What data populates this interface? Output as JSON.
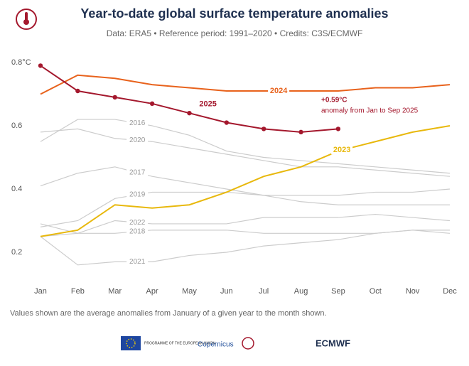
{
  "chart_data": {
    "type": "line",
    "title": "Year-to-date global surface temperature anomalies",
    "subtitle": "Data: ERA5 • Reference period: 1991–2020 • Credits: C3S/ECMWF",
    "categories": [
      "Jan",
      "Feb",
      "Mar",
      "Apr",
      "May",
      "Jun",
      "Jul",
      "Aug",
      "Sep",
      "Oct",
      "Nov",
      "Dec"
    ],
    "ylim": [
      0.12,
      0.83
    ],
    "yticks": [
      {
        "value": 0.8,
        "label": "0.8°C"
      },
      0.6,
      0.4,
      0.2
    ],
    "series": [
      {
        "name": "2016",
        "color": "#cccccc",
        "values": [
          0.55,
          0.62,
          0.62,
          0.6,
          0.57,
          0.52,
          0.5,
          0.49,
          0.48,
          0.47,
          0.46,
          0.45
        ]
      },
      {
        "name": "2020",
        "color": "#cccccc",
        "values": [
          0.58,
          0.59,
          0.56,
          0.55,
          0.53,
          0.51,
          0.49,
          0.47,
          0.47,
          0.46,
          0.45,
          0.44
        ]
      },
      {
        "name": "2017",
        "color": "#cccccc",
        "values": [
          0.41,
          0.45,
          0.47,
          0.44,
          0.42,
          0.4,
          0.38,
          0.36,
          0.35,
          0.35,
          0.35,
          0.35
        ]
      },
      {
        "name": "2019",
        "color": "#cccccc",
        "values": [
          0.28,
          0.3,
          0.37,
          0.39,
          0.39,
          0.39,
          0.38,
          0.38,
          0.38,
          0.39,
          0.39,
          0.4
        ]
      },
      {
        "name": "2022",
        "color": "#cccccc",
        "values": [
          0.29,
          0.26,
          0.3,
          0.29,
          0.29,
          0.29,
          0.31,
          0.31,
          0.31,
          0.32,
          0.31,
          0.3
        ]
      },
      {
        "name": "2018",
        "color": "#cccccc",
        "values": [
          0.25,
          0.26,
          0.26,
          0.27,
          0.27,
          0.27,
          0.26,
          0.26,
          0.26,
          0.26,
          0.27,
          0.27
        ]
      },
      {
        "name": "2021",
        "color": "#cccccc",
        "values": [
          0.25,
          0.16,
          0.17,
          0.17,
          0.19,
          0.2,
          0.22,
          0.23,
          0.24,
          0.26,
          0.27,
          0.26
        ]
      },
      {
        "name": "2023",
        "color": "#e8b80c",
        "values": [
          0.25,
          0.27,
          0.35,
          0.34,
          0.35,
          0.39,
          0.44,
          0.47,
          0.52,
          0.55,
          0.58,
          0.6
        ]
      },
      {
        "name": "2024",
        "color": "#e8621c",
        "values": [
          0.7,
          0.76,
          0.75,
          0.73,
          0.72,
          0.71,
          0.71,
          0.71,
          0.71,
          0.72,
          0.72,
          0.73
        ]
      },
      {
        "name": "2025",
        "color": "#a4182d",
        "markers": true,
        "values": [
          0.79,
          0.71,
          0.69,
          0.67,
          0.64,
          0.61,
          0.59,
          0.58,
          0.59,
          null,
          null,
          null
        ]
      }
    ],
    "annotation": {
      "value": "+0.59°C",
      "text": "anomaly from Jan to Sep 2025"
    },
    "footnote": "Values shown are the average anomalies from January of a given year to the month shown.",
    "logos": [
      "PROGRAMME OF THE EUROPEAN UNION",
      "Copernicus",
      "ECMWF"
    ]
  }
}
